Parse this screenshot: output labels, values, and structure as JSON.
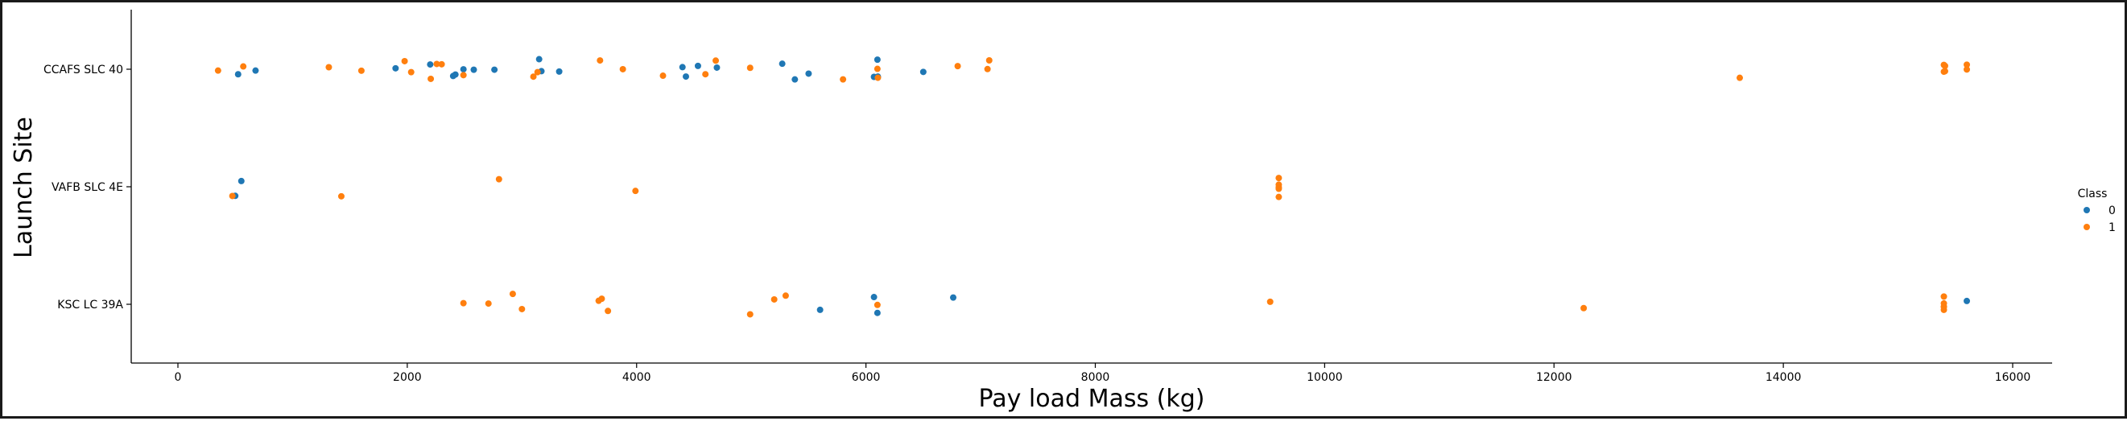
{
  "chart_data": {
    "type": "scatter",
    "title": "",
    "xlabel": "Pay load Mass (kg)",
    "ylabel": "Launch Site",
    "xlim": [
      -2000,
      16300
    ],
    "x_ticks": [
      0,
      2000,
      4000,
      6000,
      8000,
      10000,
      12000,
      14000,
      16000
    ],
    "categories": [
      "CCAFS SLC 40",
      "VAFB SLC 4E",
      "KSC LC 39A"
    ],
    "grid": false,
    "legend": {
      "title": "Class",
      "position": "right",
      "entries": [
        "0",
        "1"
      ]
    },
    "colors": {
      "0": "#1f77b4",
      "1": "#ff7f0e"
    },
    "series": [
      {
        "name": "0",
        "points": [
          {
            "x": 525,
            "y": "CCAFS SLC 40"
          },
          {
            "x": 677,
            "y": "CCAFS SLC 40"
          },
          {
            "x": 1898,
            "y": "CCAFS SLC 40"
          },
          {
            "x": 2200,
            "y": "CCAFS SLC 40"
          },
          {
            "x": 2400,
            "y": "CCAFS SLC 40"
          },
          {
            "x": 2420,
            "y": "CCAFS SLC 40"
          },
          {
            "x": 2490,
            "y": "CCAFS SLC 40"
          },
          {
            "x": 2580,
            "y": "CCAFS SLC 40"
          },
          {
            "x": 2760,
            "y": "CCAFS SLC 40"
          },
          {
            "x": 3150,
            "y": "CCAFS SLC 40"
          },
          {
            "x": 3170,
            "y": "CCAFS SLC 40"
          },
          {
            "x": 3325,
            "y": "CCAFS SLC 40"
          },
          {
            "x": 4400,
            "y": "CCAFS SLC 40"
          },
          {
            "x": 4430,
            "y": "CCAFS SLC 40"
          },
          {
            "x": 4535,
            "y": "CCAFS SLC 40"
          },
          {
            "x": 4700,
            "y": "CCAFS SLC 40"
          },
          {
            "x": 5270,
            "y": "CCAFS SLC 40"
          },
          {
            "x": 5380,
            "y": "CCAFS SLC 40"
          },
          {
            "x": 5500,
            "y": "CCAFS SLC 40"
          },
          {
            "x": 6070,
            "y": "CCAFS SLC 40"
          },
          {
            "x": 6104,
            "y": "CCAFS SLC 40"
          },
          {
            "x": 6100,
            "y": "CCAFS SLC 40"
          },
          {
            "x": 6500,
            "y": "CCAFS SLC 40"
          },
          {
            "x": 500,
            "y": "VAFB SLC 4E"
          },
          {
            "x": 553,
            "y": "VAFB SLC 4E"
          },
          {
            "x": 5600,
            "y": "KSC LC 39A"
          },
          {
            "x": 6070,
            "y": "KSC LC 39A"
          },
          {
            "x": 6100,
            "y": "KSC LC 39A"
          },
          {
            "x": 6761,
            "y": "KSC LC 39A"
          },
          {
            "x": 15600,
            "y": "KSC LC 39A"
          }
        ]
      },
      {
        "name": "1",
        "points": [
          {
            "x": 350,
            "y": "CCAFS SLC 40"
          },
          {
            "x": 570,
            "y": "CCAFS SLC 40"
          },
          {
            "x": 1316,
            "y": "CCAFS SLC 40"
          },
          {
            "x": 1600,
            "y": "CCAFS SLC 40"
          },
          {
            "x": 1977,
            "y": "CCAFS SLC 40"
          },
          {
            "x": 2034,
            "y": "CCAFS SLC 40"
          },
          {
            "x": 2205,
            "y": "CCAFS SLC 40"
          },
          {
            "x": 2257,
            "y": "CCAFS SLC 40"
          },
          {
            "x": 2300,
            "y": "CCAFS SLC 40"
          },
          {
            "x": 2490,
            "y": "CCAFS SLC 40"
          },
          {
            "x": 3100,
            "y": "CCAFS SLC 40"
          },
          {
            "x": 3136,
            "y": "CCAFS SLC 40"
          },
          {
            "x": 3681,
            "y": "CCAFS SLC 40"
          },
          {
            "x": 3880,
            "y": "CCAFS SLC 40"
          },
          {
            "x": 4230,
            "y": "CCAFS SLC 40"
          },
          {
            "x": 4600,
            "y": "CCAFS SLC 40"
          },
          {
            "x": 4690,
            "y": "CCAFS SLC 40"
          },
          {
            "x": 4990,
            "y": "CCAFS SLC 40"
          },
          {
            "x": 5800,
            "y": "CCAFS SLC 40"
          },
          {
            "x": 6104,
            "y": "CCAFS SLC 40"
          },
          {
            "x": 6100,
            "y": "CCAFS SLC 40"
          },
          {
            "x": 6800,
            "y": "CCAFS SLC 40"
          },
          {
            "x": 7060,
            "y": "CCAFS SLC 40"
          },
          {
            "x": 7075,
            "y": "CCAFS SLC 40"
          },
          {
            "x": 13620,
            "y": "CCAFS SLC 40"
          },
          {
            "x": 15400,
            "y": "CCAFS SLC 40"
          },
          {
            "x": 15410,
            "y": "CCAFS SLC 40"
          },
          {
            "x": 15400,
            "y": "CCAFS SLC 40"
          },
          {
            "x": 15410,
            "y": "CCAFS SLC 40"
          },
          {
            "x": 15600,
            "y": "CCAFS SLC 40"
          },
          {
            "x": 15600,
            "y": "CCAFS SLC 40"
          },
          {
            "x": 475,
            "y": "VAFB SLC 4E"
          },
          {
            "x": 1425,
            "y": "VAFB SLC 4E"
          },
          {
            "x": 2800,
            "y": "VAFB SLC 4E"
          },
          {
            "x": 3990,
            "y": "VAFB SLC 4E"
          },
          {
            "x": 9600,
            "y": "VAFB SLC 4E"
          },
          {
            "x": 9600,
            "y": "VAFB SLC 4E"
          },
          {
            "x": 9600,
            "y": "VAFB SLC 4E"
          },
          {
            "x": 9600,
            "y": "VAFB SLC 4E"
          },
          {
            "x": 9600,
            "y": "VAFB SLC 4E"
          },
          {
            "x": 2490,
            "y": "KSC LC 39A"
          },
          {
            "x": 2708,
            "y": "KSC LC 39A"
          },
          {
            "x": 2920,
            "y": "KSC LC 39A"
          },
          {
            "x": 3000,
            "y": "KSC LC 39A"
          },
          {
            "x": 3669,
            "y": "KSC LC 39A"
          },
          {
            "x": 3696,
            "y": "KSC LC 39A"
          },
          {
            "x": 3750,
            "y": "KSC LC 39A"
          },
          {
            "x": 4990,
            "y": "KSC LC 39A"
          },
          {
            "x": 5200,
            "y": "KSC LC 39A"
          },
          {
            "x": 5300,
            "y": "KSC LC 39A"
          },
          {
            "x": 6100,
            "y": "KSC LC 39A"
          },
          {
            "x": 9525,
            "y": "KSC LC 39A"
          },
          {
            "x": 12259,
            "y": "KSC LC 39A"
          },
          {
            "x": 15400,
            "y": "KSC LC 39A"
          },
          {
            "x": 15400,
            "y": "KSC LC 39A"
          },
          {
            "x": 15400,
            "y": "KSC LC 39A"
          },
          {
            "x": 15400,
            "y": "KSC LC 39A"
          },
          {
            "x": 15400,
            "y": "KSC LC 39A"
          }
        ]
      }
    ]
  }
}
